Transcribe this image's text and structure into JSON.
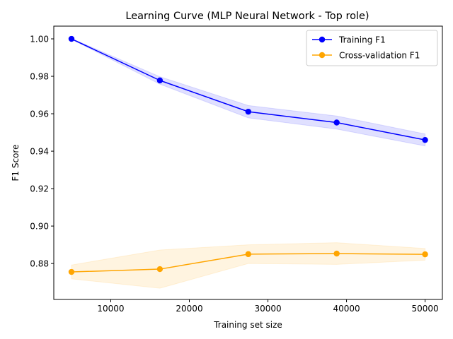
{
  "chart_data": {
    "type": "line",
    "title": "Learning Curve (MLP Neural Network - Top role)",
    "xlabel": "Training set size",
    "ylabel": "F1 Score",
    "xlim": [
      2750,
      52200
    ],
    "ylim": [
      0.8608,
      1.0068
    ],
    "xticks": [
      10000,
      20000,
      30000,
      40000,
      50000
    ],
    "xtick_labels": [
      "10000",
      "20000",
      "30000",
      "40000",
      "50000"
    ],
    "yticks": [
      0.88,
      0.9,
      0.92,
      0.94,
      0.96,
      0.98,
      1.0
    ],
    "ytick_labels": [
      "0.88",
      "0.90",
      "0.92",
      "0.94",
      "0.96",
      "0.98",
      "1.00"
    ],
    "grid": false,
    "legend_position": "top-right",
    "x": [
      5000,
      16250,
      27500,
      38750,
      50000
    ],
    "series": [
      {
        "name": "Training F1",
        "color": "#0000ff",
        "band_color": "#0000ff",
        "values": [
          1.0,
          0.9778,
          0.9611,
          0.9553,
          0.946
        ],
        "band_lower": [
          0.9998,
          0.9758,
          0.9578,
          0.9518,
          0.9428
        ],
        "band_upper": [
          1.0002,
          0.9798,
          0.9644,
          0.9588,
          0.9492
        ]
      },
      {
        "name": "Cross-validation F1",
        "color": "#ffa500",
        "band_color": "#ffa500",
        "values": [
          0.8755,
          0.877,
          0.885,
          0.8853,
          0.8849
        ],
        "band_lower": [
          0.8718,
          0.8668,
          0.88,
          0.8795,
          0.8818
        ],
        "band_upper": [
          0.8792,
          0.8872,
          0.89,
          0.8911,
          0.888
        ]
      }
    ]
  }
}
